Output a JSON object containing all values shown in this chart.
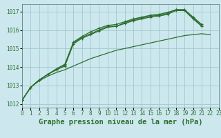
{
  "title": "Graphe pression niveau de la mer (hPa)",
  "background_color": "#cce8ee",
  "grid_color": "#9fc8cc",
  "line_color": "#2d6e2d",
  "xlim": [
    0,
    23
  ],
  "ylim": [
    1011.8,
    1017.4
  ],
  "yticks": [
    1012,
    1013,
    1014,
    1015,
    1016,
    1017
  ],
  "xticks": [
    0,
    1,
    2,
    3,
    4,
    5,
    6,
    7,
    8,
    9,
    10,
    11,
    12,
    13,
    14,
    15,
    16,
    17,
    18,
    19,
    20,
    21,
    22,
    23
  ],
  "series_marked": [
    [
      1012.2,
      1012.9,
      1013.3,
      1013.6,
      1013.85,
      1014.05,
      1015.25,
      1015.55,
      1015.75,
      1015.95,
      1016.15,
      1016.2,
      1016.35,
      1016.5,
      1016.6,
      1016.7,
      1016.75,
      1016.85,
      1017.05,
      1017.05,
      1016.6,
      1016.2,
      null,
      null
    ],
    [
      1012.2,
      1012.9,
      1013.3,
      1013.6,
      1013.85,
      1014.1,
      1015.3,
      1015.6,
      1015.8,
      1016.0,
      1016.2,
      1016.2,
      1016.4,
      1016.55,
      1016.65,
      1016.75,
      1016.8,
      1016.9,
      1017.1,
      1017.1,
      1016.65,
      1016.25,
      null,
      null
    ],
    [
      1012.2,
      1012.9,
      1013.3,
      1013.6,
      1013.9,
      1014.15,
      1015.35,
      1015.65,
      1015.9,
      1016.1,
      1016.25,
      1016.3,
      1016.45,
      1016.6,
      1016.7,
      1016.8,
      1016.85,
      1016.95,
      1017.1,
      1017.1,
      1016.7,
      1016.3,
      null,
      null
    ]
  ],
  "series_flat": [
    1012.2,
    1012.9,
    1013.25,
    1013.5,
    1013.7,
    1013.85,
    1014.05,
    1014.25,
    1014.45,
    1014.6,
    1014.75,
    1014.9,
    1015.0,
    1015.1,
    1015.2,
    1015.3,
    1015.4,
    1015.5,
    1015.6,
    1015.7,
    1015.75,
    1015.8,
    1015.75,
    null
  ],
  "title_fontsize": 7.5,
  "tick_fontsize": 5.5
}
